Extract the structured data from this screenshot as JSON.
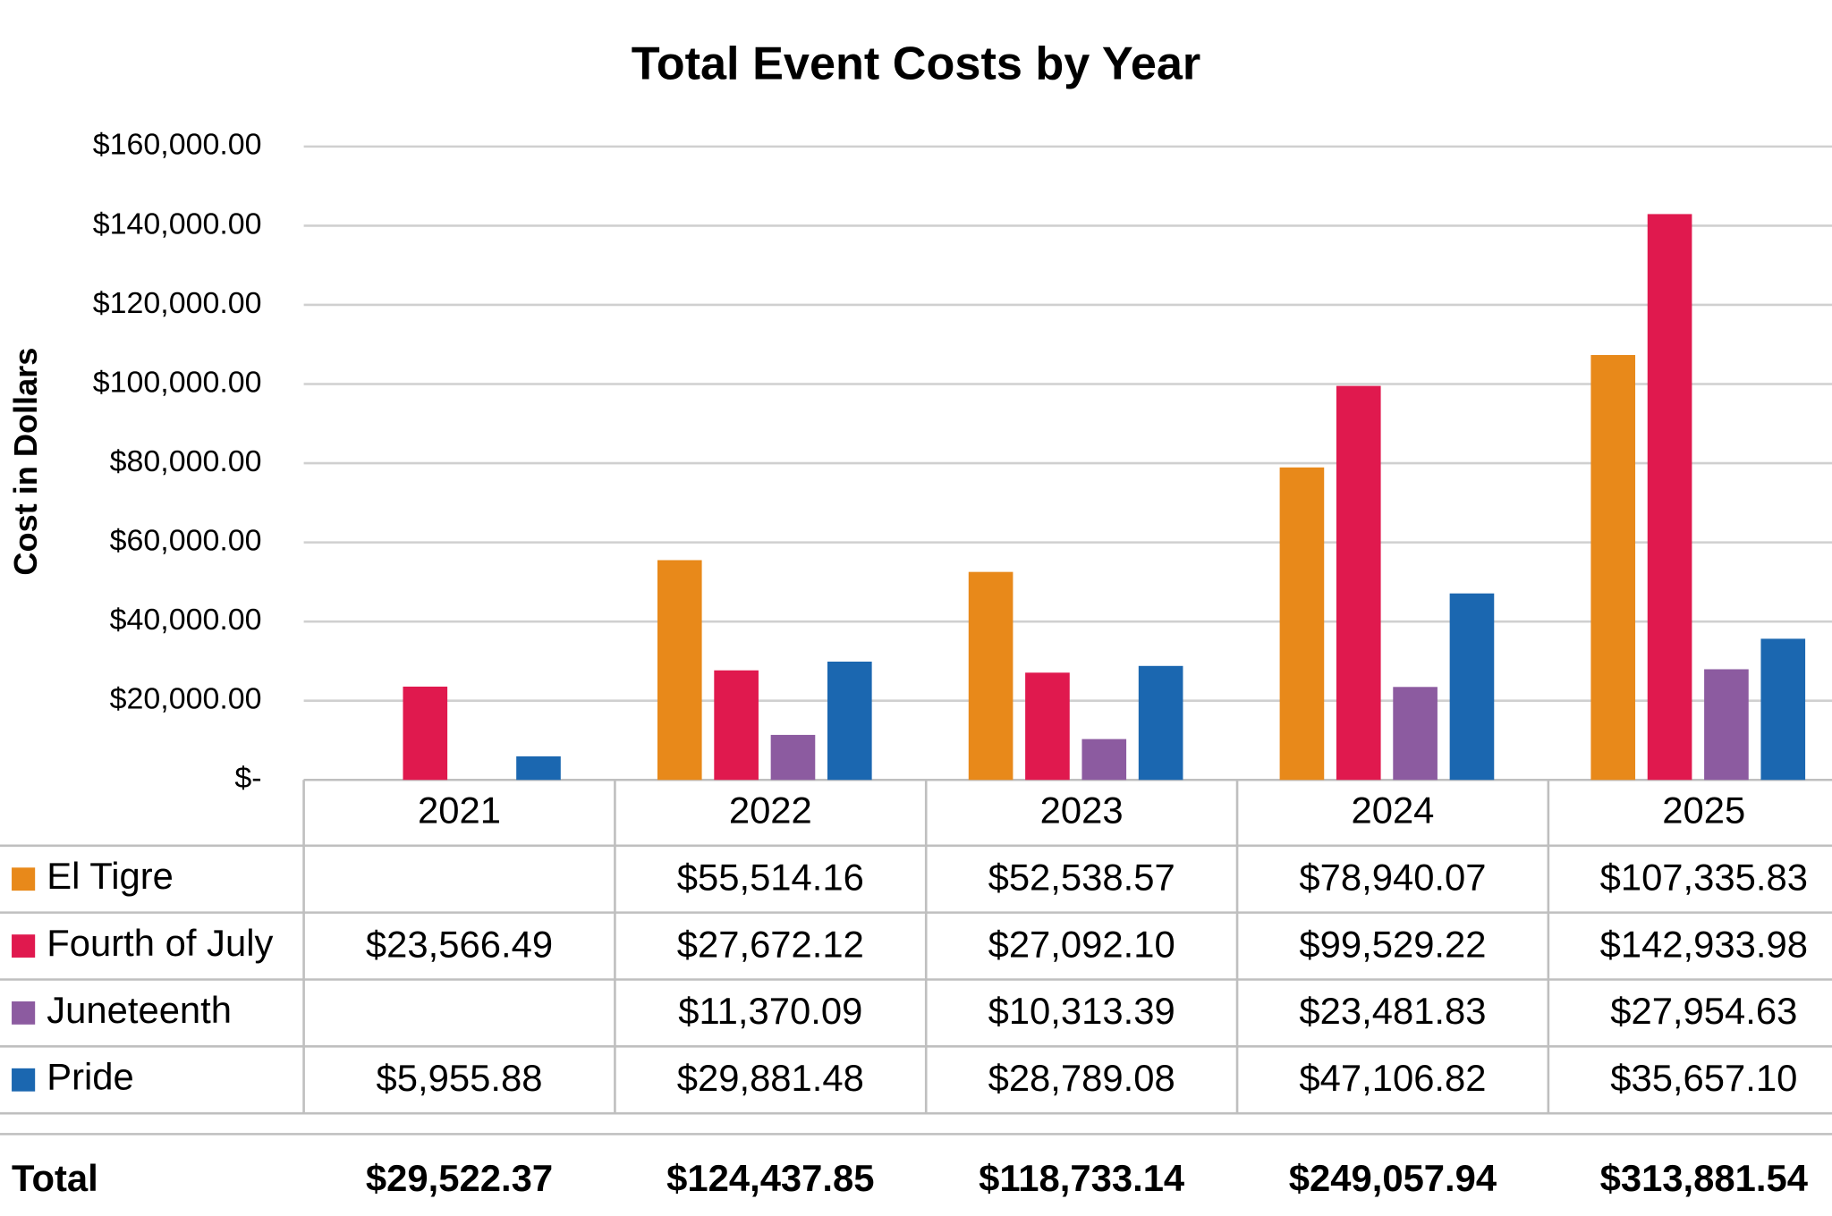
{
  "chart_data": {
    "type": "bar",
    "title": "Total Event Costs by Year",
    "y_label": "Cost in Dollars",
    "categories": [
      "2021",
      "2022",
      "2023",
      "2024",
      "2025"
    ],
    "series": [
      {
        "name": "El Tigre",
        "color": "#e8891a",
        "values": [
          null,
          55514.16,
          52538.57,
          78940.07,
          107335.83
        ],
        "value_labels": [
          null,
          "$55,514.16",
          "$52,538.57",
          "$78,940.07",
          "$107,335.83"
        ]
      },
      {
        "name": "Fourth of July",
        "color": "#e0194e",
        "values": [
          23566.49,
          27672.12,
          27092.1,
          99529.22,
          142933.98
        ],
        "value_labels": [
          "$23,566.49",
          "$27,672.12",
          "$27,092.10",
          "$99,529.22",
          "$142,933.98"
        ]
      },
      {
        "name": "Juneteenth",
        "color": "#8c5ba0",
        "values": [
          null,
          11370.09,
          10313.39,
          23481.83,
          27954.63
        ],
        "value_labels": [
          null,
          "$11,370.09",
          "$10,313.39",
          "$23,481.83",
          "$27,954.63"
        ]
      },
      {
        "name": "Pride",
        "color": "#1b67b0",
        "values": [
          5955.88,
          29881.48,
          28789.08,
          47106.82,
          35657.1
        ],
        "value_labels": [
          "$5,955.88",
          "$29,881.48",
          "$28,789.08",
          "$47,106.82",
          "$35,657.10"
        ]
      }
    ],
    "totals": {
      "label": "Total",
      "values": [
        29522.37,
        124437.85,
        118733.14,
        249057.94,
        313881.54
      ],
      "value_labels": [
        "$29,522.37",
        "$124,437.85",
        "$118,733.14",
        "$249,057.94",
        "$313,881.54"
      ]
    },
    "ylim": [
      0,
      160000
    ],
    "yticks": [
      {
        "value": 0,
        "label": "$-"
      },
      {
        "value": 20000,
        "label": "$20,000.00"
      },
      {
        "value": 40000,
        "label": "$40,000.00"
      },
      {
        "value": 60000,
        "label": "$60,000.00"
      },
      {
        "value": 80000,
        "label": "$80,000.00"
      },
      {
        "value": 100000,
        "label": "$100,000.00"
      },
      {
        "value": 120000,
        "label": "$120,000.00"
      },
      {
        "value": 140000,
        "label": "$140,000.00"
      },
      {
        "value": 160000,
        "label": "$160,000.00"
      }
    ],
    "grid": true
  }
}
